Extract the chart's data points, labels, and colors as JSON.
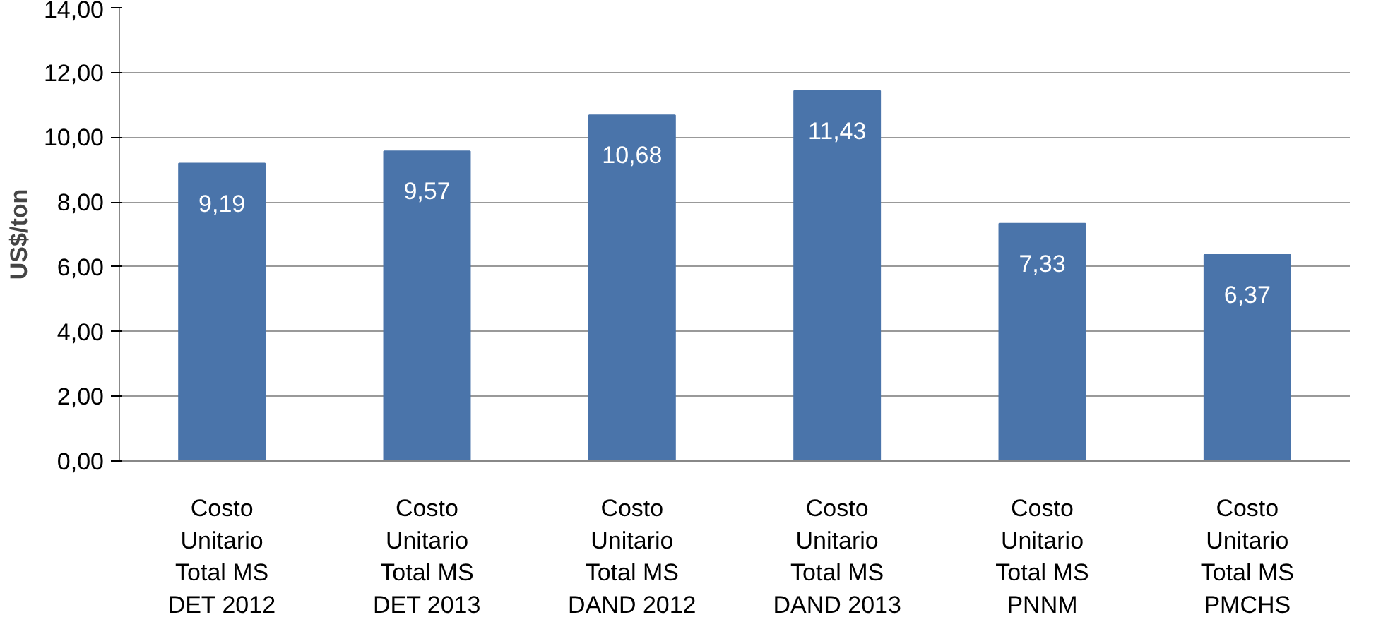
{
  "chart_data": {
    "type": "bar",
    "ylabel": "US$/ton",
    "categories": [
      "Costo Unitario Total MS DET 2012",
      "Costo Unitario Total MS DET 2013",
      "Costo Unitario Total MS DAND 2012",
      "Costo Unitario Total MS DAND 2013",
      "Costo Unitario Total MS PNNM",
      "Costo Unitario Total MS PMCHS"
    ],
    "values": [
      9.19,
      9.57,
      10.68,
      11.43,
      7.33,
      6.37
    ],
    "value_labels": [
      "9,19",
      "9,57",
      "10,68",
      "11,43",
      "7,33",
      "6,37"
    ],
    "color": "#4a74aa",
    "ylim": [
      0,
      14
    ],
    "yticks": [
      {
        "value": 0,
        "label": "0,00"
      },
      {
        "value": 2,
        "label": "2,00"
      },
      {
        "value": 4,
        "label": "4,00"
      },
      {
        "value": 6,
        "label": "6,00"
      },
      {
        "value": 8,
        "label": "8,00"
      },
      {
        "value": 10,
        "label": "10,00"
      },
      {
        "value": 12,
        "label": "12,00"
      },
      {
        "value": 14,
        "label": "14,00"
      }
    ],
    "grid": "y"
  }
}
